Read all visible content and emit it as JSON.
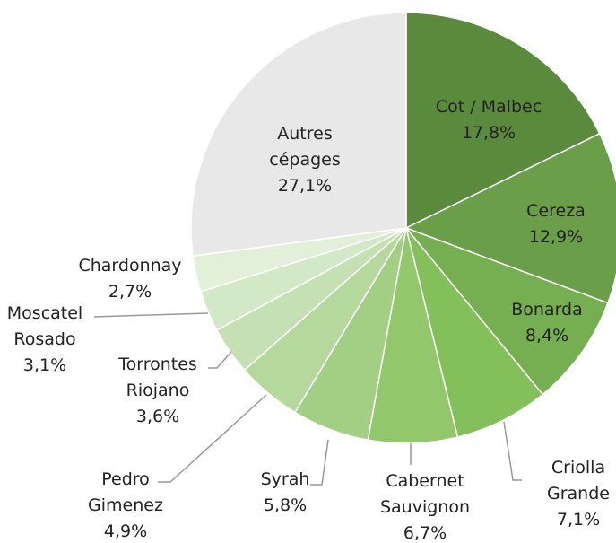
{
  "chart_data": {
    "type": "pie",
    "categories": [
      "Cot / Malbec",
      "Cereza",
      "Bonarda",
      "Criolla\nGrande",
      "Cabernet\nSauvignon",
      "Syrah",
      "Pedro\nGimenez",
      "Torrontes\nRiojano",
      "Moscatel\nRosado",
      "Chardonnay",
      "Autres\ncépages"
    ],
    "values": [
      17.8,
      12.9,
      8.4,
      7.1,
      6.7,
      5.8,
      4.9,
      3.6,
      3.1,
      2.7,
      27.1
    ],
    "value_labels": [
      "17,8%",
      "12,9%",
      "8,4%",
      "7,1%",
      "6,7%",
      "5,8%",
      "4,9%",
      "3,6%",
      "3,1%",
      "2,7%",
      "27,1%"
    ],
    "colors": [
      "#5a8a3c",
      "#6a9e48",
      "#76ae52",
      "#84c05a",
      "#92c86b",
      "#a3cf84",
      "#b5d89c",
      "#c5e0b2",
      "#d3e8c6",
      "#e2f0d9",
      "#e8e8e8"
    ]
  }
}
